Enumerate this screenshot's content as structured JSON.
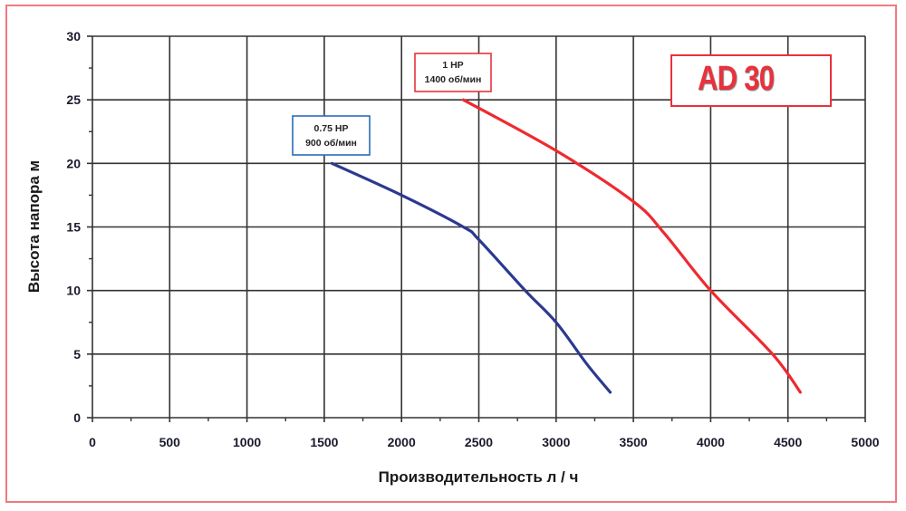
{
  "chart_data": {
    "type": "line",
    "title": "AD 30",
    "xlabel": "Производительность л / ч",
    "ylabel": "Высота напора м",
    "xlim": [
      0,
      5000
    ],
    "ylim": [
      0,
      30
    ],
    "x_ticks": [
      0,
      500,
      1000,
      1500,
      2000,
      2500,
      3000,
      3500,
      4000,
      4500,
      5000
    ],
    "y_ticks": [
      0,
      5,
      10,
      15,
      20,
      25,
      30
    ],
    "grid": true,
    "series": [
      {
        "name": "0.75 HP 900 об/мин",
        "label_line1": "0.75 HP",
        "label_line2": "900 об/мин",
        "color": "#2b3a8f",
        "x": [
          1550,
          2000,
          2400,
          2500,
          2800,
          3000,
          3200,
          3350
        ],
        "y": [
          20,
          17.5,
          15,
          14,
          10,
          7.5,
          4.2,
          2
        ]
      },
      {
        "name": "1 HP 1400 об/мин",
        "label_line1": "1 HP",
        "label_line2": "1400 об/мин",
        "color": "#ee2a30",
        "x": [
          2400,
          3000,
          3500,
          3700,
          4000,
          4400,
          4580
        ],
        "y": [
          25,
          21,
          17,
          14.5,
          10,
          5,
          2
        ]
      }
    ]
  },
  "labels": {
    "model": "AD 30",
    "xlabel": "Производительность л / ч",
    "ylabel": "Высота напора м",
    "series_blue_line1": "0.75 HP",
    "series_blue_line2": "900 об/мин",
    "series_red_line1": "1 HP",
    "series_red_line2": "1400 об/мин"
  },
  "colors": {
    "frame": "#f07a80",
    "blue_series": "#2b3a8f",
    "red_series": "#ee2a30",
    "blue_label_border": "#2a6db8",
    "red_label_border": "#e8323c",
    "grid": "#333333"
  }
}
